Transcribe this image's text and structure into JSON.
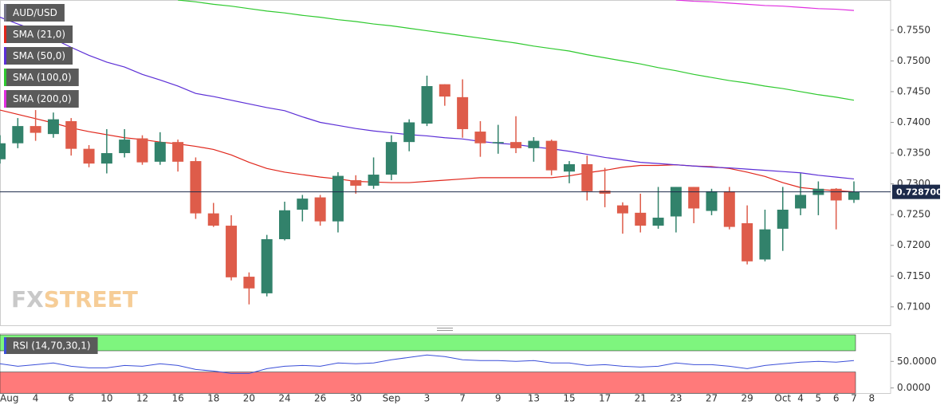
{
  "chart_data": [
    {
      "type": "candlestick",
      "title": "AUD/USD",
      "categories": [
        "Aug",
        null,
        "4",
        null,
        "6",
        null,
        "10",
        null,
        "12",
        null,
        "16",
        null,
        "18",
        null,
        "20",
        null,
        "24",
        null,
        "26",
        null,
        "30",
        null,
        "Sep",
        null,
        "3",
        null,
        "7",
        null,
        "9",
        null,
        "13",
        null,
        "15",
        null,
        "17",
        null,
        "21",
        null,
        "23",
        null,
        "27",
        null,
        "29",
        null,
        "Oct",
        "4",
        "5",
        "6",
        "7",
        "8"
      ],
      "open": [
        0.734,
        0.7366,
        0.7394,
        0.7381,
        0.7402,
        0.7357,
        0.7333,
        0.735,
        0.7374,
        0.7336,
        0.7368,
        0.7337,
        0.7252,
        0.7232,
        0.7149,
        0.7122,
        0.721,
        0.7258,
        0.7278,
        0.7239,
        0.7306,
        0.7297,
        0.7315,
        0.7368,
        0.7398,
        0.7462,
        0.7441,
        0.7385,
        0.7366,
        0.7368,
        0.7358,
        0.737,
        0.732,
        0.7332,
        0.7289,
        0.7265,
        0.7253,
        0.7232,
        0.7247,
        0.7295,
        0.7256,
        0.7288,
        0.7236,
        0.7177,
        0.7227,
        0.726,
        0.7282,
        0.7292,
        0.7274,
        null
      ],
      "high": [
        0.7379,
        0.7407,
        0.742,
        0.7416,
        0.7407,
        0.7363,
        0.7389,
        0.7389,
        0.7379,
        0.7384,
        0.7372,
        0.7343,
        0.7269,
        0.7249,
        0.7156,
        0.7217,
        0.7271,
        0.7282,
        0.7282,
        0.7319,
        0.7314,
        0.7343,
        0.7379,
        0.7405,
        0.7476,
        0.7462,
        0.747,
        0.7402,
        0.7396,
        0.741,
        0.7376,
        0.7372,
        0.7337,
        0.7346,
        0.7326,
        0.727,
        0.7284,
        0.7295,
        0.7295,
        0.7295,
        0.7292,
        0.7295,
        0.7265,
        0.7258,
        0.7295,
        0.7317,
        0.7304,
        0.7293,
        0.7304,
        null
      ],
      "low": [
        0.7333,
        0.7358,
        0.737,
        0.7375,
        0.7346,
        0.7327,
        0.7317,
        0.7343,
        0.7331,
        0.7331,
        0.732,
        0.7243,
        0.723,
        0.7143,
        0.7104,
        0.7117,
        0.7208,
        0.7239,
        0.7232,
        0.7221,
        0.7284,
        0.7292,
        0.7306,
        0.7353,
        0.7394,
        0.7427,
        0.7375,
        0.7344,
        0.7349,
        0.735,
        0.7336,
        0.7314,
        0.7301,
        0.7273,
        0.7262,
        0.7219,
        0.7221,
        0.7227,
        0.7221,
        0.7236,
        0.7249,
        0.7226,
        0.7169,
        0.7174,
        0.7191,
        0.7249,
        0.7249,
        0.7226,
        0.7269,
        null
      ],
      "close": [
        0.7366,
        0.7394,
        0.7383,
        0.7405,
        0.7357,
        0.7333,
        0.735,
        0.7372,
        0.7335,
        0.7368,
        0.7336,
        0.7252,
        0.7232,
        0.7148,
        0.713,
        0.721,
        0.7257,
        0.7276,
        0.7239,
        0.7313,
        0.7297,
        0.7315,
        0.7368,
        0.74,
        0.7459,
        0.7442,
        0.7389,
        0.7366,
        0.7368,
        0.7358,
        0.737,
        0.7322,
        0.7332,
        0.7288,
        0.7284,
        0.7252,
        0.7232,
        0.7245,
        0.7295,
        0.726,
        0.7288,
        0.723,
        0.7174,
        0.7226,
        0.7258,
        0.7282,
        0.7292,
        0.7273,
        0.7287,
        null
      ],
      "up_color": "#32826b",
      "down_color": "#de5c4a",
      "series": [
        {
          "name": "SMA (21,0)",
          "color": "#e0261b",
          "values": [
            0.742,
            0.7413,
            0.7406,
            0.7399,
            0.7391,
            0.7385,
            0.738,
            0.7375,
            0.7372,
            0.7368,
            0.7365,
            0.7361,
            0.7356,
            0.7347,
            0.7335,
            0.7325,
            0.7319,
            0.7315,
            0.7311,
            0.7308,
            0.7304,
            0.7303,
            0.7302,
            0.7302,
            0.7304,
            0.7306,
            0.7308,
            0.731,
            0.731,
            0.731,
            0.731,
            0.731,
            0.7313,
            0.7318,
            0.7322,
            0.7327,
            0.733,
            0.733,
            0.7331,
            0.7329,
            0.7328,
            0.7325,
            0.7319,
            0.7312,
            0.7302,
            0.7294,
            0.7291,
            0.7289,
            0.7287,
            null
          ]
        },
        {
          "name": "SMA (50,0)",
          "color": "#5b2ed6",
          "values": [
            0.7571,
            0.756,
            0.755,
            0.7536,
            0.7522,
            0.7509,
            0.7498,
            0.749,
            0.7478,
            0.7469,
            0.7459,
            0.7447,
            0.7442,
            0.7436,
            0.743,
            0.7424,
            0.7419,
            0.7409,
            0.74,
            0.7395,
            0.739,
            0.7386,
            0.7383,
            0.738,
            0.7378,
            0.7375,
            0.7373,
            0.7369,
            0.7366,
            0.7364,
            0.736,
            0.7357,
            0.7353,
            0.7348,
            0.7343,
            0.7339,
            0.7335,
            0.7333,
            0.7331,
            0.7329,
            0.7327,
            0.7326,
            0.7324,
            0.7322,
            0.732,
            0.7318,
            0.7314,
            0.7311,
            0.7308,
            null
          ]
        },
        {
          "name": "SMA (100,0)",
          "color": "#2ec92e",
          "values": [
            null,
            null,
            null,
            null,
            null,
            null,
            null,
            null,
            null,
            null,
            0.7599,
            0.7596,
            0.7592,
            0.7589,
            0.7585,
            0.7581,
            0.7578,
            0.7574,
            0.7571,
            0.7567,
            0.7564,
            0.756,
            0.7557,
            0.7553,
            0.7549,
            0.7545,
            0.7541,
            0.7537,
            0.7533,
            0.7529,
            0.7524,
            0.752,
            0.7516,
            0.751,
            0.7505,
            0.75,
            0.7495,
            0.7489,
            0.7484,
            0.7478,
            0.7473,
            0.7468,
            0.7464,
            0.7459,
            0.7455,
            0.745,
            0.7445,
            0.7441,
            0.7436,
            null
          ]
        },
        {
          "name": "SMA (200,0)",
          "color": "#e02ee0",
          "values": [
            null,
            null,
            null,
            null,
            null,
            null,
            null,
            null,
            null,
            null,
            null,
            null,
            null,
            null,
            null,
            null,
            null,
            null,
            null,
            null,
            null,
            null,
            null,
            null,
            null,
            null,
            null,
            null,
            null,
            null,
            null,
            null,
            null,
            null,
            null,
            null,
            null,
            null,
            0.7599,
            0.7597,
            0.7596,
            0.7594,
            0.7592,
            0.759,
            0.7589,
            0.7587,
            0.7585,
            0.7584,
            0.7582,
            null
          ]
        }
      ],
      "ylim": [
        0.707,
        0.7599
      ],
      "yticks": [
        {
          "value": 0.71,
          "label": "0.7100"
        },
        {
          "value": 0.715,
          "label": "0.7150"
        },
        {
          "value": 0.72,
          "label": "0.7200"
        },
        {
          "value": 0.725,
          "label": "0.7250"
        },
        {
          "value": 0.73,
          "label": "0.7300"
        },
        {
          "value": 0.735,
          "label": "0.7350"
        },
        {
          "value": 0.74,
          "label": "0.7400"
        },
        {
          "value": 0.745,
          "label": "0.7450"
        },
        {
          "value": 0.75,
          "label": "0.7500"
        },
        {
          "value": 0.755,
          "label": "0.7550"
        }
      ],
      "last_price": {
        "value": 0.7287,
        "label": "0.728700"
      },
      "watermark": {
        "prefix": "FX",
        "suffix": "STREET"
      }
    },
    {
      "type": "line",
      "title": "RSI (14,70,30,1)",
      "color": "#3b4fd8",
      "overbought": 70,
      "oversold": 30,
      "overbought_color": "#7ef57e",
      "oversold_color": "#ff7a7a",
      "values": [
        45.5,
        40.9,
        43.9,
        47.0,
        40.9,
        37.9,
        37.9,
        42.4,
        40.9,
        45.5,
        42.4,
        34.8,
        31.8,
        27.3,
        27.3,
        36.4,
        40.9,
        42.4,
        40.9,
        47.0,
        45.5,
        47.0,
        53.0,
        57.6,
        62.1,
        59.1,
        53.0,
        51.5,
        51.5,
        50.0,
        51.5,
        47.0,
        47.0,
        42.4,
        43.9,
        40.9,
        39.4,
        40.9,
        47.0,
        43.9,
        43.9,
        40.9,
        36.4,
        42.4,
        45.5,
        48.5,
        50.0,
        48.5,
        51.5,
        null
      ],
      "ylim": [
        -10,
        100
      ],
      "yticks": [
        {
          "value": 0,
          "label": "0.0000"
        },
        {
          "value": 50,
          "label": "50.0000"
        }
      ]
    }
  ]
}
